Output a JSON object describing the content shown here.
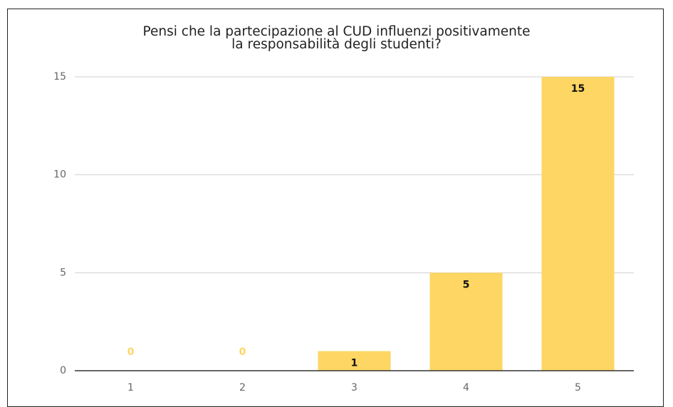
{
  "chart_data": {
    "type": "bar",
    "title": "Pensi che la partecipazione al CUD influenzi positivamente la responsabilità degli studenti?",
    "categories": [
      "1",
      "2",
      "3",
      "4",
      "5"
    ],
    "values": [
      0,
      0,
      1,
      5,
      15
    ],
    "color": "#fdd663",
    "ylim": [
      0,
      15
    ],
    "yticks": [
      0,
      5,
      10,
      15
    ],
    "grid": true
  }
}
